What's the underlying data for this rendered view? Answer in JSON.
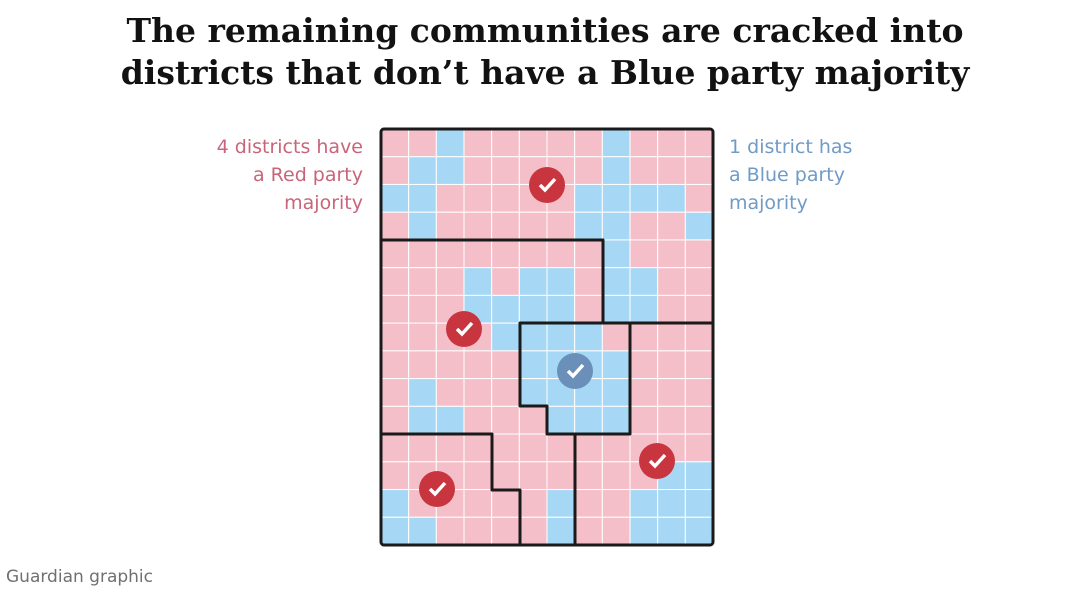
{
  "header": {
    "title": [
      "The remaining communities are cracked into",
      "districts that don’t have a Blue party majority"
    ]
  },
  "labels": {
    "red": [
      "4 districts have",
      "a Red party",
      "majority"
    ],
    "blue": [
      "1 district has",
      "a Blue party",
      "majority"
    ]
  },
  "footer": {
    "source": "Guardian graphic"
  }
}
